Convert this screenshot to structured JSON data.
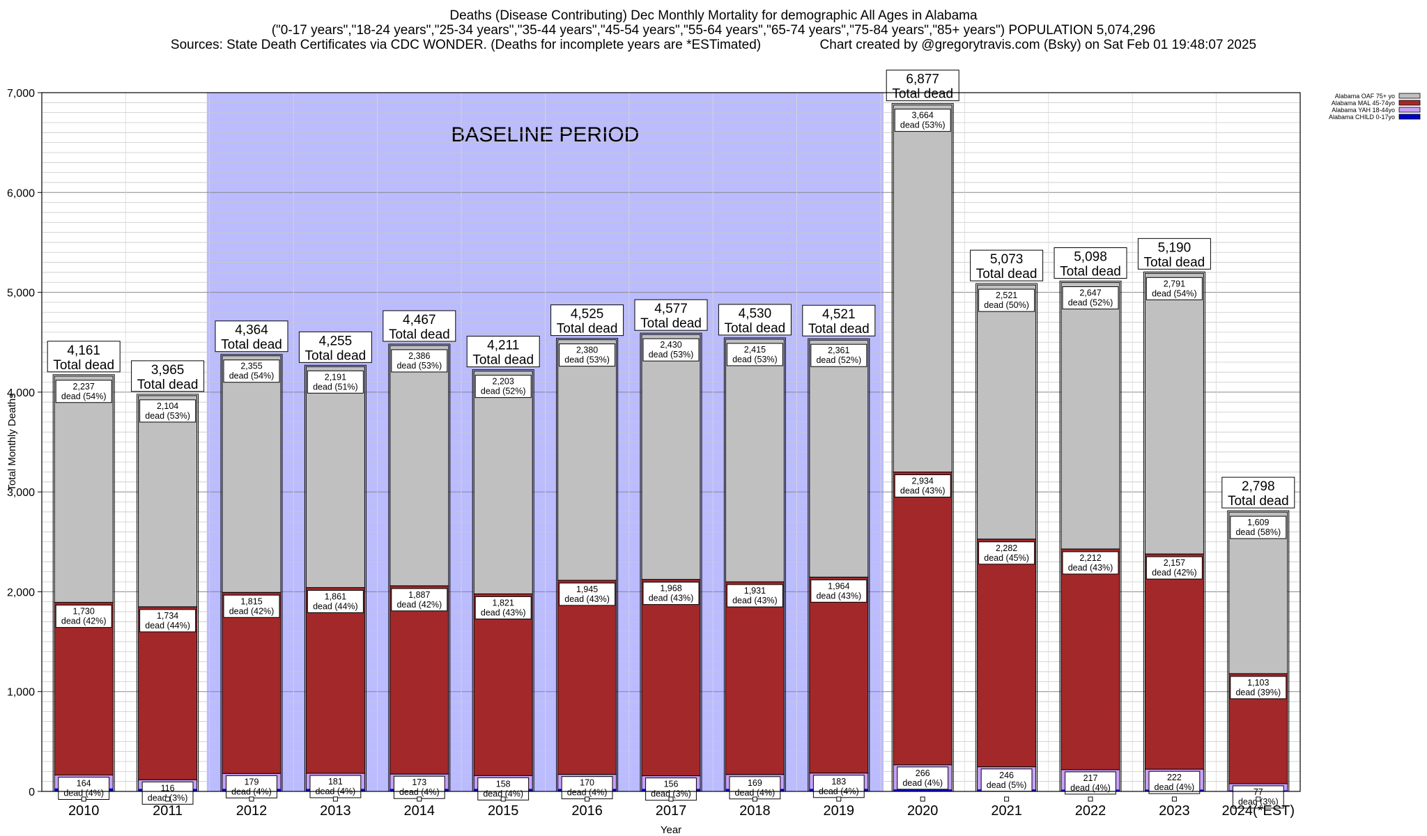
{
  "titles": {
    "line1": "Deaths (Disease Contributing) Dec Monthly Mortality for demographic All Ages in Alabama",
    "line2": "(\"0-17 years\",\"18-24 years\",\"25-34 years\",\"35-44 years\",\"45-54 years\",\"55-64 years\",\"65-74 years\",\"75-84 years\",\"85+ years\") POPULATION 5,074,296",
    "line3": "Sources: State Death Certificates via CDC WONDER. (Deaths for incomplete years are *ESTimated)                Chart created by @gregorytravis.com (Bsky) on Sat Feb 01 19:48:07 2025"
  },
  "chart_data": {
    "type": "bar",
    "stacked": true,
    "xlabel": "Year",
    "ylabel": "Total Monthly Deaths",
    "ylim": [
      0,
      7000
    ],
    "yticks": [
      0,
      1000,
      2000,
      3000,
      4000,
      5000,
      6000,
      7000
    ],
    "ytick_labels": [
      "0",
      "1,000",
      "2,000",
      "3,000",
      "4,000",
      "5,000",
      "6,000",
      "7,000"
    ],
    "grid": true,
    "legend_position": "top-right",
    "categories": [
      "2010",
      "2011",
      "2012",
      "2013",
      "2014",
      "2015",
      "2016",
      "2017",
      "2018",
      "2019",
      "2020",
      "2021",
      "2022",
      "2023",
      "2024(*EST)"
    ],
    "totals": [
      4161,
      3965,
      4364,
      4255,
      4467,
      4211,
      4525,
      4577,
      4530,
      4521,
      6877,
      5073,
      5098,
      5190,
      2798
    ],
    "total_label_suffix": "Total dead",
    "dead_word": "dead",
    "series": [
      {
        "name": "Alabama CHILD 0-17yo",
        "color": "#0000cc",
        "values": [
          30,
          25,
          25,
          25,
          25,
          25,
          25,
          25,
          25,
          25,
          20,
          20,
          18,
          18,
          10
        ]
      },
      {
        "name": "Alabama YAH 18-44yo",
        "color": "#c8a0f8",
        "values": [
          164,
          116,
          179,
          181,
          173,
          158,
          170,
          156,
          169,
          183,
          266,
          246,
          217,
          222,
          77
        ],
        "pcts": [
          "4%",
          "3%",
          "4%",
          "4%",
          "4%",
          "4%",
          "4%",
          "3%",
          "4%",
          "4%",
          "4%",
          "5%",
          "4%",
          "4%",
          "3%"
        ]
      },
      {
        "name": "Alabama MAL 45-74yo",
        "color": "#a3282a",
        "values": [
          1730,
          1734,
          1815,
          1861,
          1887,
          1821,
          1945,
          1968,
          1931,
          1964,
          2934,
          2282,
          2212,
          2157,
          1103
        ],
        "pcts": [
          "42%",
          "44%",
          "42%",
          "44%",
          "42%",
          "43%",
          "43%",
          "43%",
          "43%",
          "43%",
          "43%",
          "45%",
          "43%",
          "42%",
          "39%"
        ]
      },
      {
        "name": "Alabama OAF 75+ yo",
        "color": "#c0c0c0",
        "values": [
          2237,
          2104,
          2355,
          2191,
          2386,
          2203,
          2380,
          2430,
          2415,
          2361,
          3664,
          2521,
          2647,
          2791,
          1609
        ],
        "pcts": [
          "54%",
          "53%",
          "54%",
          "51%",
          "53%",
          "52%",
          "53%",
          "53%",
          "53%",
          "52%",
          "53%",
          "50%",
          "52%",
          "54%",
          "58%"
        ]
      }
    ],
    "annotations": [
      {
        "text": "BASELINE PERIOD",
        "from_category": "2012",
        "to_category": "2019",
        "color": "#bbbbff"
      }
    ]
  }
}
